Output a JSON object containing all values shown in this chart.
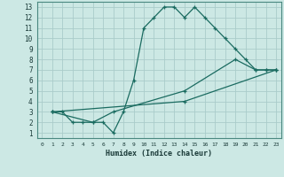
{
  "xlabel": "Humidex (Indice chaleur)",
  "background_color": "#cce8e4",
  "grid_color": "#aaccca",
  "line_color": "#1a6b60",
  "xlim": [
    -0.5,
    23.5
  ],
  "ylim": [
    0.5,
    13.5
  ],
  "xticks": [
    0,
    1,
    2,
    3,
    4,
    5,
    6,
    7,
    8,
    9,
    10,
    11,
    12,
    13,
    14,
    15,
    16,
    17,
    18,
    19,
    20,
    21,
    22,
    23
  ],
  "yticks": [
    1,
    2,
    3,
    4,
    5,
    6,
    7,
    8,
    9,
    10,
    11,
    12,
    13
  ],
  "line1_x": [
    1,
    2,
    3,
    4,
    5,
    6,
    7,
    8,
    9,
    10,
    11,
    12,
    13,
    14,
    15,
    16,
    17,
    18,
    19,
    20,
    21,
    22,
    23
  ],
  "line1_y": [
    3,
    3,
    2,
    2,
    2,
    2,
    1,
    3,
    6,
    11,
    12,
    13,
    13,
    12,
    13,
    12,
    11,
    10,
    9,
    8,
    7,
    7,
    7
  ],
  "line2_x": [
    1,
    5,
    7,
    14,
    19,
    21,
    22,
    23
  ],
  "line2_y": [
    3,
    2,
    3,
    5,
    8,
    7,
    7,
    7
  ],
  "line3_x": [
    1,
    14,
    23
  ],
  "line3_y": [
    3,
    4,
    7
  ]
}
